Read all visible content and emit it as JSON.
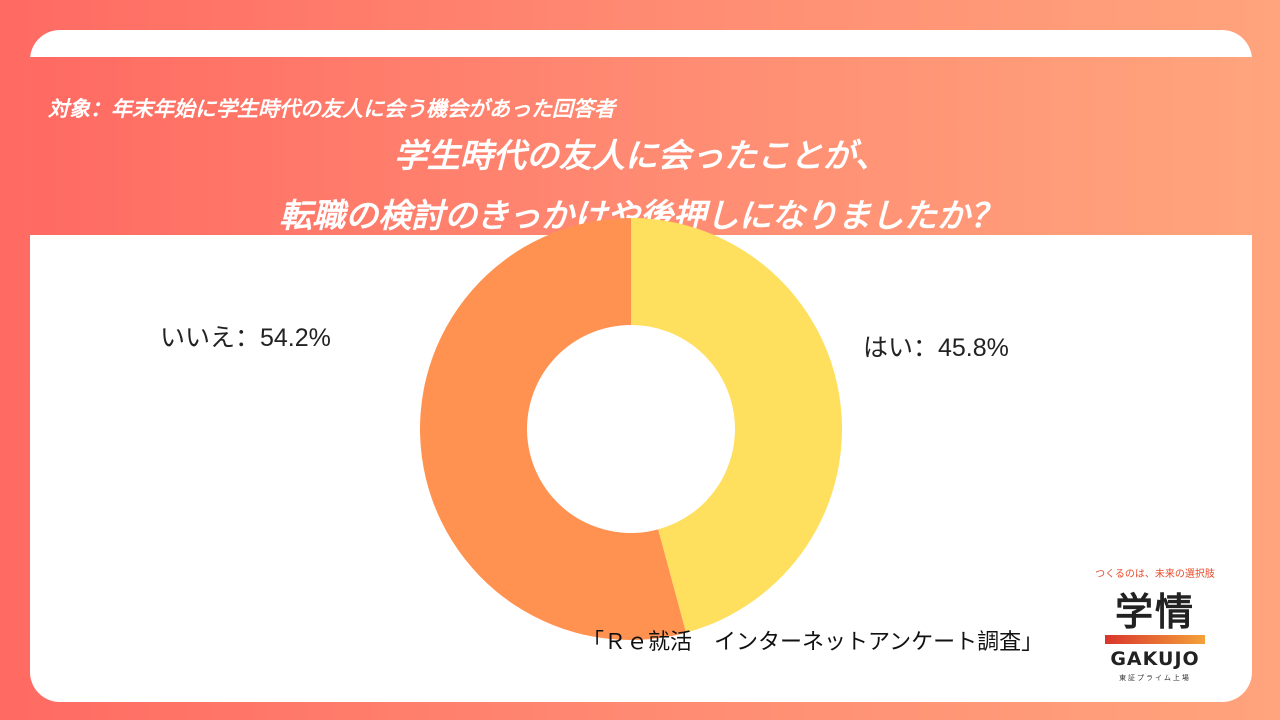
{
  "header": {
    "target": "対象：年末年始に学生時代の友人に会う機会があった回答者",
    "title_line1": "学生時代の友人に会ったことが、",
    "title_line2": "転職の検討のきっかけや後押しになりましたか？"
  },
  "chart_data": {
    "type": "pie",
    "style": "donut",
    "slices": [
      {
        "label": "はい：45.8%",
        "category": "はい",
        "value": 45.8,
        "color": "#ffdf5e"
      },
      {
        "label": "いいえ：54.2%",
        "category": "いいえ",
        "value": 54.2,
        "color": "#ff9250"
      }
    ]
  },
  "footer": {
    "source": "「Ｒｅ就活　インターネットアンケート調査」"
  },
  "logo": {
    "tagline": "つくるのは、未来の選択肢",
    "kanji": "学情",
    "brand": "GAKUJO",
    "market": "東証プライム上場"
  }
}
